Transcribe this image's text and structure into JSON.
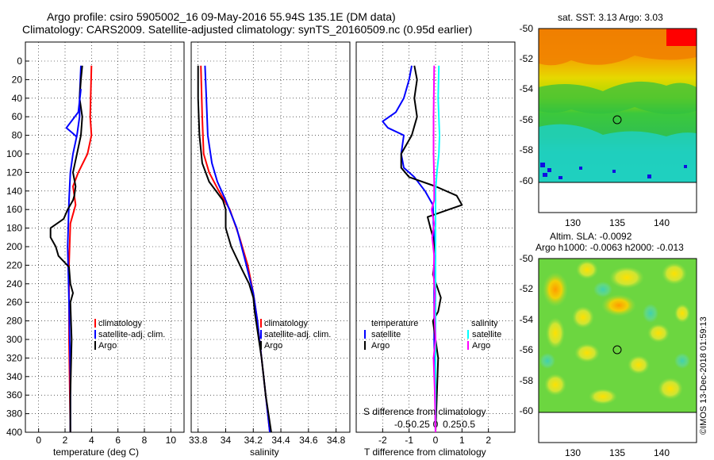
{
  "title": {
    "line1": "Argo profile: csiro 5905002_16 09-May-2016 55.94S 135.1E (DM data)",
    "line2": "Climatology: CARS2009. Satellite-adjusted climatology: synTS_20160509.nc (0.95d earlier)"
  },
  "colors": {
    "clim": "#ff0000",
    "sat": "#0000ff",
    "argo": "#000000",
    "sal_sat": "#00ffff",
    "sal_diff": "#ff00ff"
  },
  "chart_data": [
    {
      "type": "line",
      "name": "temperature-profile",
      "xlabel": "temperature (deg C)",
      "ylabel": "",
      "xlim": [
        -1,
        11
      ],
      "ylim": [
        400,
        0
      ],
      "xticks": [
        0,
        2,
        4,
        6,
        8,
        10
      ],
      "yticks": [
        0,
        20,
        40,
        60,
        80,
        100,
        120,
        140,
        160,
        180,
        200,
        220,
        240,
        260,
        280,
        300,
        320,
        340,
        360,
        380,
        400
      ],
      "legend": [
        "climatology",
        "satellite-adj. clim.",
        "Argo"
      ],
      "series": [
        {
          "name": "climatology",
          "color": "#ff0000",
          "points": [
            [
              4.0,
              5
            ],
            [
              3.9,
              60
            ],
            [
              4.0,
              80
            ],
            [
              3.7,
              100
            ],
            [
              3.0,
              120
            ],
            [
              2.6,
              135
            ],
            [
              2.7,
              145
            ],
            [
              2.8,
              155
            ],
            [
              2.4,
              175
            ],
            [
              2.3,
              220
            ],
            [
              2.3,
              300
            ],
            [
              2.4,
              400
            ]
          ]
        },
        {
          "name": "satellite-adj. clim.",
          "color": "#0000ff",
          "points": [
            [
              3.2,
              5
            ],
            [
              3.1,
              40
            ],
            [
              3.1,
              60
            ],
            [
              2.9,
              80
            ],
            [
              2.6,
              100
            ],
            [
              2.4,
              120
            ],
            [
              2.3,
              150
            ],
            [
              2.2,
              200
            ],
            [
              2.3,
              260
            ],
            [
              2.4,
              340
            ],
            [
              2.4,
              400
            ]
          ]
        },
        {
          "name": "Argo",
          "color": "#000000",
          "points": [
            [
              3.3,
              5
            ],
            [
              3.2,
              20
            ],
            [
              3.1,
              40
            ],
            [
              3.3,
              60
            ],
            [
              3.2,
              80
            ],
            [
              2.9,
              100
            ],
            [
              2.6,
              120
            ],
            [
              2.8,
              135
            ],
            [
              2.7,
              145
            ],
            [
              2.6,
              150
            ],
            [
              2.2,
              160
            ],
            [
              1.9,
              170
            ],
            [
              0.9,
              180
            ],
            [
              0.9,
              190
            ],
            [
              1.3,
              200
            ],
            [
              1.5,
              210
            ],
            [
              2.3,
              222
            ],
            [
              2.4,
              240
            ],
            [
              2.6,
              250
            ],
            [
              2.4,
              260
            ],
            [
              2.5,
              300
            ],
            [
              2.4,
              360
            ],
            [
              2.4,
              400
            ]
          ]
        },
        {
          "name": "satellite-wiggle",
          "color": "#0000ff",
          "points": [
            [
              3.2,
              30
            ],
            [
              3.0,
              55
            ],
            [
              2.1,
              72
            ],
            [
              2.6,
              78
            ],
            [
              2.9,
              82
            ]
          ]
        }
      ]
    },
    {
      "type": "line",
      "name": "salinity-profile",
      "xlabel": "salinity",
      "xlim": [
        33.75,
        34.9
      ],
      "ylim": [
        400,
        0
      ],
      "xticks": [
        33.8,
        34,
        34.2,
        34.4,
        34.6,
        34.8
      ],
      "xtick_labels": [
        "33.8",
        "34",
        "34.2",
        "34.4",
        "34.6",
        "34.8"
      ],
      "legend": [
        "climatology",
        "satellite-adj. clim.",
        "Argo"
      ],
      "series": [
        {
          "name": "climatology",
          "color": "#ff0000",
          "points": [
            [
              33.82,
              5
            ],
            [
              33.83,
              60
            ],
            [
              33.84,
              100
            ],
            [
              33.88,
              120
            ],
            [
              33.95,
              140
            ],
            [
              34.03,
              160
            ],
            [
              34.1,
              190
            ],
            [
              34.16,
              220
            ],
            [
              34.2,
              250
            ],
            [
              34.23,
              280
            ],
            [
              34.26,
              320
            ],
            [
              34.29,
              360
            ],
            [
              34.32,
              400
            ]
          ]
        },
        {
          "name": "satellite-adj. clim.",
          "color": "#0000ff",
          "points": [
            [
              33.85,
              5
            ],
            [
              33.86,
              40
            ],
            [
              33.87,
              80
            ],
            [
              33.9,
              110
            ],
            [
              33.94,
              130
            ],
            [
              34.0,
              150
            ],
            [
              34.08,
              180
            ],
            [
              34.15,
              220
            ],
            [
              34.2,
              250
            ],
            [
              34.23,
              280
            ],
            [
              34.26,
              320
            ],
            [
              34.29,
              360
            ],
            [
              34.32,
              400
            ]
          ]
        },
        {
          "name": "Argo",
          "color": "#000000",
          "points": [
            [
              33.8,
              5
            ],
            [
              33.8,
              40
            ],
            [
              33.81,
              80
            ],
            [
              33.83,
              110
            ],
            [
              33.88,
              130
            ],
            [
              33.98,
              150
            ],
            [
              34.0,
              160
            ],
            [
              34.0,
              180
            ],
            [
              34.04,
              200
            ],
            [
              34.12,
              225
            ],
            [
              34.17,
              240
            ],
            [
              34.2,
              255
            ],
            [
              34.21,
              270
            ],
            [
              34.23,
              290
            ],
            [
              34.26,
              320
            ],
            [
              34.29,
              360
            ],
            [
              34.33,
              400
            ]
          ]
        }
      ]
    },
    {
      "type": "line",
      "name": "difference-profile",
      "xlabel": "T difference from climatology",
      "xlabel_top": "S difference from climatology",
      "xlim": [
        -3,
        3
      ],
      "ylim": [
        400,
        0
      ],
      "xticks": [
        -2,
        -1,
        0,
        1,
        2
      ],
      "sticks": [
        -0.5,
        -0.25,
        0,
        0.25,
        0.5
      ],
      "stick_labels": [
        "-0.5",
        "-0.25",
        "0",
        "0.25",
        "0.5"
      ],
      "legend_temperature": {
        "title": "temperature",
        "items": [
          "satellite",
          "Argo"
        ]
      },
      "legend_salinity": {
        "title": "salinity",
        "items": [
          "satellite",
          "Argo"
        ]
      },
      "series": [
        {
          "name": "T satellite",
          "color": "#0000ff",
          "points": [
            [
              -0.9,
              5
            ],
            [
              -1.0,
              20
            ],
            [
              -1.2,
              40
            ],
            [
              -1.5,
              55
            ],
            [
              -2.0,
              65
            ],
            [
              -1.8,
              72
            ],
            [
              -1.2,
              80
            ],
            [
              -1.3,
              100
            ],
            [
              -1.2,
              115
            ],
            [
              -0.8,
              125
            ],
            [
              -0.4,
              140
            ],
            [
              -0.1,
              155
            ],
            [
              -0.05,
              200
            ],
            [
              -0.05,
              300
            ],
            [
              0,
              400
            ]
          ]
        },
        {
          "name": "T Argo",
          "color": "#000000",
          "points": [
            [
              -0.8,
              5
            ],
            [
              -0.7,
              20
            ],
            [
              -0.8,
              40
            ],
            [
              -0.7,
              60
            ],
            [
              -0.9,
              80
            ],
            [
              -1.3,
              100
            ],
            [
              -1.3,
              115
            ],
            [
              -1.0,
              125
            ],
            [
              0.0,
              135
            ],
            [
              0.8,
              145
            ],
            [
              1.0,
              155
            ],
            [
              0.5,
              160
            ],
            [
              -0.3,
              168
            ],
            [
              -0.1,
              190
            ],
            [
              0.0,
              210
            ],
            [
              -0.1,
              230
            ],
            [
              0.2,
              255
            ],
            [
              0.1,
              270
            ],
            [
              -0.1,
              280
            ],
            [
              0.1,
              320
            ],
            [
              0.0,
              400
            ]
          ]
        },
        {
          "name": "S satellite",
          "color": "#00ffff",
          "points": [
            [
              0.05,
              5
            ],
            [
              0.04,
              40
            ],
            [
              0.06,
              80
            ],
            [
              0.05,
              100
            ],
            [
              0.02,
              120
            ],
            [
              0.0,
              140
            ],
            [
              0.0,
              200
            ],
            [
              0.0,
              300
            ],
            [
              0.0,
              400
            ]
          ]
        },
        {
          "name": "S Argo",
          "color": "#ff00ff",
          "points": [
            [
              -0.02,
              5
            ],
            [
              -0.03,
              60
            ],
            [
              -0.03,
              100
            ],
            [
              -0.02,
              130
            ],
            [
              -0.02,
              150
            ],
            [
              -0.06,
              160
            ],
            [
              -0.02,
              175
            ],
            [
              -0.05,
              190
            ],
            [
              -0.02,
              210
            ],
            [
              -0.03,
              230
            ],
            [
              -0.01,
              250
            ],
            [
              -0.02,
              270
            ],
            [
              0.0,
              300
            ],
            [
              -0.03,
              320
            ],
            [
              -0.01,
              360
            ],
            [
              0.0,
              400
            ]
          ]
        }
      ]
    }
  ],
  "maps": {
    "sst": {
      "title": "sat. SST: 3.13 Argo: 3.03",
      "yticks": [
        "-50",
        "-52",
        "-54",
        "-56",
        "-58",
        "-60"
      ],
      "xticks": [
        "130",
        "135",
        "140"
      ]
    },
    "sla": {
      "title1": "Altim. SLA: -0.0092",
      "title2": "Argo h1000: -0.0063 h2000: -0.013",
      "yticks": [
        "-50",
        "-52",
        "-54",
        "-56",
        "-58",
        "-60"
      ],
      "xticks": [
        "130",
        "135",
        "140"
      ]
    }
  },
  "watermark": "©IMOS 13-Dec-2018 01:59:13"
}
